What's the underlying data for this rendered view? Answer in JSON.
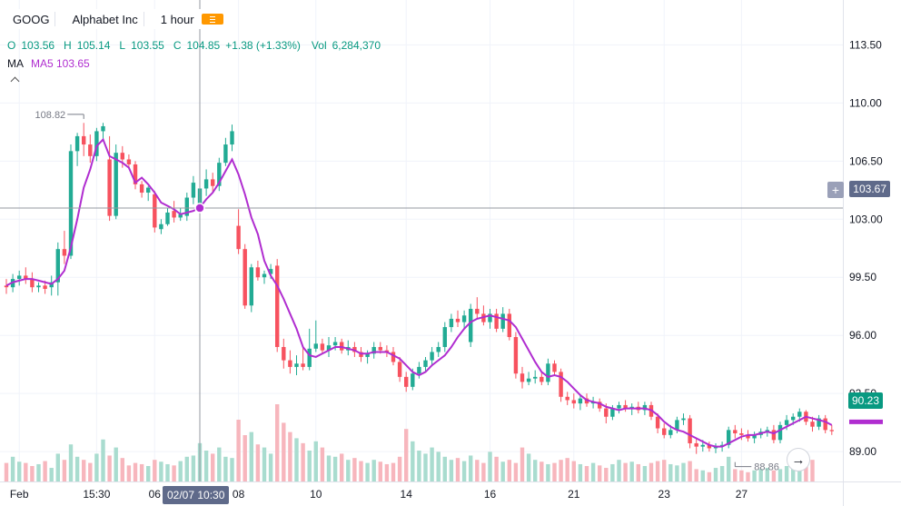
{
  "header": {
    "symbol": "GOOG",
    "name": "Alphabet Inc",
    "interval": "1 hour"
  },
  "ohlc": {
    "o_label": "O",
    "o": "103.56",
    "h_label": "H",
    "h": "105.14",
    "l_label": "L",
    "l": "103.55",
    "c_label": "C",
    "c": "104.85",
    "change": "+1.38 (+1.33%)",
    "vol_label": "Vol",
    "vol": "6,284,370"
  },
  "indicator": {
    "label": "MA",
    "value": "MA5 103.65"
  },
  "crosshair": {
    "price_label": "103.67",
    "date_label": "02/07 10:30",
    "price": 103.67
  },
  "last_price_label": "90.23",
  "colors": {
    "up": "#22ab94",
    "down": "#f7525f",
    "ma": "#b02dd0",
    "vol_up": "#a9dccf",
    "vol_down": "#f7b6bd"
  },
  "chart_data": {
    "type": "candlestick",
    "ylim": [
      87.2,
      115.0
    ],
    "y_ticks": [
      89.0,
      92.5,
      96.0,
      99.5,
      103.0,
      106.5,
      110.0,
      113.5
    ],
    "y_tick_labels": [
      "89.00",
      "92.50",
      "96.00",
      "99.50",
      "103.00",
      "106.50",
      "110.00",
      "113.50"
    ],
    "x_tick_labels": [
      "Feb",
      "15:30",
      "06",
      "08",
      "10",
      "14",
      "16",
      "21",
      "23",
      "27"
    ],
    "x_tick_bar_index": [
      2,
      14,
      23,
      36,
      48,
      62,
      75,
      88,
      102,
      114
    ],
    "annotations": [
      {
        "text": "108.82",
        "bar_index": 12,
        "price": 108.82,
        "kind": "high"
      },
      {
        "text": "88.86",
        "bar_index": 113,
        "price": 88.86,
        "kind": "low"
      }
    ],
    "crosshair_bar_index": 30,
    "ohlc": [
      [
        99.0,
        99.4,
        98.5,
        98.9
      ],
      [
        98.9,
        99.7,
        98.6,
        99.4
      ],
      [
        99.4,
        99.9,
        99.0,
        99.6
      ],
      [
        99.6,
        100.1,
        99.1,
        99.4
      ],
      [
        99.4,
        99.8,
        98.6,
        98.9
      ],
      [
        98.9,
        99.2,
        98.6,
        99.0
      ],
      [
        99.0,
        99.3,
        98.5,
        98.8
      ],
      [
        98.9,
        99.6,
        98.4,
        99.2
      ],
      [
        99.2,
        101.6,
        98.4,
        101.2
      ],
      [
        101.2,
        102.3,
        100.3,
        100.8
      ],
      [
        100.8,
        107.5,
        100.6,
        107.1
      ],
      [
        107.1,
        108.2,
        106.2,
        108.0
      ],
      [
        108.0,
        108.8,
        106.8,
        107.5
      ],
      [
        107.5,
        108.1,
        106.4,
        106.8
      ],
      [
        106.8,
        108.5,
        106.5,
        108.3
      ],
      [
        108.3,
        108.8,
        107.8,
        108.6
      ],
      [
        106.6,
        108.0,
        102.9,
        103.2
      ],
      [
        103.2,
        107.5,
        103.0,
        107.0
      ],
      [
        107.0,
        107.4,
        106.1,
        106.6
      ],
      [
        106.6,
        106.9,
        106.0,
        106.3
      ],
      [
        106.3,
        106.5,
        104.8,
        105.1
      ],
      [
        105.1,
        105.3,
        104.3,
        104.6
      ],
      [
        104.6,
        105.0,
        104.1,
        104.9
      ],
      [
        104.5,
        104.7,
        102.2,
        102.5
      ],
      [
        102.4,
        103.0,
        102.1,
        102.7
      ],
      [
        102.7,
        103.7,
        102.6,
        103.4
      ],
      [
        103.5,
        104.1,
        102.8,
        103.1
      ],
      [
        103.1,
        103.7,
        102.9,
        103.3
      ],
      [
        103.2,
        104.6,
        102.9,
        104.3
      ],
      [
        104.3,
        105.6,
        103.9,
        105.2
      ],
      [
        103.56,
        105.14,
        103.55,
        104.85
      ],
      [
        104.85,
        106.0,
        104.4,
        105.4
      ],
      [
        105.4,
        105.8,
        104.6,
        105.0
      ],
      [
        105.0,
        106.7,
        104.7,
        106.4
      ],
      [
        106.4,
        107.9,
        106.2,
        107.5
      ],
      [
        107.5,
        108.7,
        107.1,
        108.3
      ],
      [
        102.6,
        103.6,
        100.9,
        101.2
      ],
      [
        101.2,
        101.5,
        97.6,
        97.8
      ],
      [
        97.8,
        100.3,
        97.4,
        100.1
      ],
      [
        100.1,
        100.5,
        99.3,
        99.5
      ],
      [
        99.5,
        99.9,
        99.1,
        99.7
      ],
      [
        99.7,
        100.3,
        99.4,
        100.0
      ],
      [
        100.2,
        100.6,
        95.0,
        95.3
      ],
      [
        95.3,
        95.8,
        94.0,
        94.5
      ],
      [
        94.5,
        95.1,
        93.7,
        94.1
      ],
      [
        94.1,
        94.8,
        93.6,
        94.3
      ],
      [
        94.3,
        95.3,
        93.9,
        94.1
      ],
      [
        94.1,
        96.4,
        93.9,
        95.2
      ],
      [
        95.2,
        96.9,
        95.0,
        95.5
      ],
      [
        95.5,
        95.8,
        94.9,
        95.1
      ],
      [
        95.1,
        95.9,
        94.7,
        95.4
      ],
      [
        95.4,
        95.9,
        95.1,
        95.6
      ],
      [
        95.6,
        95.8,
        94.9,
        95.1
      ],
      [
        95.1,
        95.7,
        94.8,
        95.3
      ],
      [
        95.3,
        95.6,
        94.7,
        95.0
      ],
      [
        95.0,
        95.3,
        94.4,
        94.7
      ],
      [
        94.7,
        95.1,
        94.3,
        94.9
      ],
      [
        94.9,
        95.6,
        94.6,
        95.3
      ],
      [
        95.3,
        95.6,
        94.9,
        95.1
      ],
      [
        95.1,
        95.4,
        94.7,
        95.0
      ],
      [
        95.0,
        95.3,
        94.2,
        94.4
      ],
      [
        94.4,
        94.7,
        93.2,
        93.5
      ],
      [
        93.5,
        93.8,
        92.6,
        92.9
      ],
      [
        92.9,
        94.0,
        92.7,
        93.7
      ],
      [
        93.7,
        94.4,
        93.4,
        94.1
      ],
      [
        94.1,
        94.7,
        93.8,
        94.5
      ],
      [
        94.5,
        95.3,
        94.2,
        95.0
      ],
      [
        95.0,
        95.6,
        94.7,
        95.3
      ],
      [
        95.3,
        96.8,
        95.0,
        96.5
      ],
      [
        96.5,
        97.3,
        96.2,
        97.0
      ],
      [
        97.0,
        97.5,
        96.5,
        96.8
      ],
      [
        96.8,
        97.5,
        96.4,
        97.2
      ],
      [
        95.6,
        97.9,
        95.3,
        97.6
      ],
      [
        97.6,
        98.3,
        97.0,
        97.3
      ],
      [
        97.3,
        97.8,
        96.6,
        96.8
      ],
      [
        96.8,
        97.6,
        96.4,
        97.3
      ],
      [
        97.3,
        97.6,
        96.2,
        96.4
      ],
      [
        96.4,
        97.7,
        96.2,
        97.3
      ],
      [
        97.3,
        97.6,
        95.7,
        95.9
      ],
      [
        95.9,
        96.2,
        93.4,
        93.7
      ],
      [
        93.7,
        94.1,
        92.8,
        93.2
      ],
      [
        93.2,
        93.8,
        93.0,
        93.4
      ],
      [
        93.4,
        93.9,
        93.1,
        93.5
      ],
      [
        93.5,
        93.8,
        93.0,
        93.2
      ],
      [
        93.2,
        94.6,
        93.0,
        94.3
      ],
      [
        94.3,
        94.5,
        93.6,
        93.8
      ],
      [
        93.8,
        94.0,
        92.0,
        92.3
      ],
      [
        92.3,
        92.6,
        91.8,
        92.1
      ],
      [
        92.1,
        92.5,
        91.6,
        91.9
      ],
      [
        91.9,
        92.4,
        91.5,
        92.2
      ],
      [
        92.2,
        92.5,
        91.7,
        91.9
      ],
      [
        91.9,
        92.3,
        91.6,
        92.0
      ],
      [
        92.0,
        92.2,
        91.4,
        91.6
      ],
      [
        91.6,
        91.9,
        90.7,
        91.1
      ],
      [
        91.1,
        91.8,
        90.9,
        91.6
      ],
      [
        91.6,
        92.0,
        91.3,
        91.8
      ],
      [
        91.8,
        92.1,
        91.4,
        91.6
      ],
      [
        91.6,
        91.9,
        91.2,
        91.7
      ],
      [
        91.7,
        92.0,
        91.3,
        91.5
      ],
      [
        91.5,
        92.0,
        91.2,
        91.8
      ],
      [
        91.8,
        92.0,
        90.9,
        91.1
      ],
      [
        91.1,
        91.3,
        90.1,
        90.4
      ],
      [
        90.4,
        90.7,
        89.8,
        90.0
      ],
      [
        90.0,
        90.6,
        89.8,
        90.3
      ],
      [
        90.3,
        91.1,
        90.1,
        90.9
      ],
      [
        90.9,
        91.3,
        90.6,
        91.0
      ],
      [
        91.0,
        91.2,
        89.2,
        89.5
      ],
      [
        89.5,
        89.8,
        88.86,
        89.3
      ],
      [
        89.3,
        89.7,
        89.0,
        89.4
      ],
      [
        89.4,
        89.6,
        89.0,
        89.2
      ],
      [
        89.2,
        89.5,
        88.9,
        89.3
      ],
      [
        89.3,
        89.6,
        89.0,
        89.4
      ],
      [
        89.4,
        90.5,
        89.2,
        90.3
      ],
      [
        90.3,
        90.6,
        89.8,
        90.1
      ],
      [
        90.1,
        90.4,
        89.7,
        90.0
      ],
      [
        90.0,
        90.3,
        89.6,
        89.8
      ],
      [
        89.8,
        90.2,
        89.5,
        90.0
      ],
      [
        90.0,
        90.4,
        89.8,
        90.2
      ],
      [
        90.2,
        90.5,
        89.9,
        90.3
      ],
      [
        90.3,
        90.6,
        89.5,
        89.7
      ],
      [
        89.7,
        90.8,
        89.5,
        90.6
      ],
      [
        90.6,
        91.2,
        90.3,
        90.9
      ],
      [
        90.9,
        91.3,
        90.6,
        91.1
      ],
      [
        91.1,
        91.6,
        90.8,
        91.4
      ],
      [
        91.4,
        91.5,
        90.6,
        90.8
      ],
      [
        90.8,
        91.1,
        90.2,
        90.5
      ],
      [
        90.5,
        91.2,
        90.3,
        91.0
      ],
      [
        91.0,
        91.2,
        90.1,
        90.3
      ],
      [
        90.3,
        90.6,
        90.0,
        90.23
      ]
    ],
    "volume": [
      0.3,
      0.4,
      0.32,
      0.3,
      0.25,
      0.28,
      0.33,
      0.22,
      0.45,
      0.35,
      0.6,
      0.4,
      0.35,
      0.3,
      0.45,
      0.68,
      0.42,
      0.55,
      0.38,
      0.26,
      0.3,
      0.28,
      0.25,
      0.35,
      0.32,
      0.28,
      0.26,
      0.33,
      0.4,
      0.42,
      0.62,
      0.5,
      0.45,
      0.55,
      0.4,
      0.38,
      1.0,
      0.75,
      0.8,
      0.6,
      0.55,
      0.45,
      1.25,
      0.95,
      0.8,
      0.7,
      0.62,
      0.5,
      0.65,
      0.55,
      0.42,
      0.4,
      0.45,
      0.35,
      0.38,
      0.33,
      0.3,
      0.35,
      0.32,
      0.28,
      0.3,
      0.4,
      0.85,
      0.65,
      0.5,
      0.45,
      0.55,
      0.48,
      0.4,
      0.35,
      0.38,
      0.33,
      0.42,
      0.35,
      0.3,
      0.48,
      0.4,
      0.32,
      0.35,
      0.3,
      0.55,
      0.45,
      0.35,
      0.32,
      0.28,
      0.3,
      0.35,
      0.38,
      0.33,
      0.28,
      0.25,
      0.3,
      0.26,
      0.22,
      0.28,
      0.35,
      0.3,
      0.32,
      0.28,
      0.25,
      0.3,
      0.33,
      0.35,
      0.28,
      0.26,
      0.3,
      0.33,
      0.2,
      0.18,
      0.15,
      0.22,
      0.25,
      0.4,
      0.2,
      0.18,
      0.15,
      0.18,
      0.2,
      0.22,
      0.18,
      0.2,
      0.25,
      0.3,
      0.5,
      0.4,
      0.35
    ],
    "ma5": [
      99.0,
      99.2,
      99.3,
      99.4,
      99.4,
      99.3,
      99.2,
      99.1,
      99.4,
      99.9,
      101.3,
      103.0,
      104.9,
      106.0,
      107.4,
      107.8,
      106.8,
      106.6,
      106.4,
      106.1,
      105.2,
      105.5,
      105.1,
      104.6,
      104.0,
      103.8,
      103.6,
      103.3,
      103.4,
      103.5,
      103.7,
      104.2,
      104.6,
      105.2,
      105.9,
      106.6,
      105.7,
      104.5,
      103.1,
      102.1,
      100.5,
      99.6,
      99.0,
      98.2,
      97.3,
      96.4,
      95.3,
      94.8,
      94.7,
      94.9,
      95.1,
      95.3,
      95.3,
      95.2,
      95.1,
      94.9,
      94.9,
      95.0,
      95.0,
      95.0,
      94.8,
      94.6,
      94.2,
      93.8,
      93.6,
      93.8,
      94.2,
      94.5,
      94.8,
      95.3,
      95.9,
      96.4,
      96.8,
      97.0,
      97.1,
      97.2,
      97.1,
      97.0,
      96.9,
      96.5,
      95.8,
      95.1,
      94.4,
      93.8,
      93.5,
      93.6,
      93.5,
      93.2,
      92.8,
      92.4,
      92.1,
      92.0,
      91.9,
      91.7,
      91.6,
      91.5,
      91.6,
      91.6,
      91.6,
      91.6,
      91.5,
      91.2,
      90.8,
      90.5,
      90.3,
      90.2,
      90.0,
      89.8,
      89.6,
      89.4,
      89.3,
      89.3,
      89.5,
      89.7,
      89.9,
      90.0,
      90.0,
      90.1,
      90.2,
      90.1,
      90.3,
      90.5,
      90.7,
      90.9,
      91.1,
      91.0,
      90.9,
      90.8,
      90.6
    ]
  }
}
